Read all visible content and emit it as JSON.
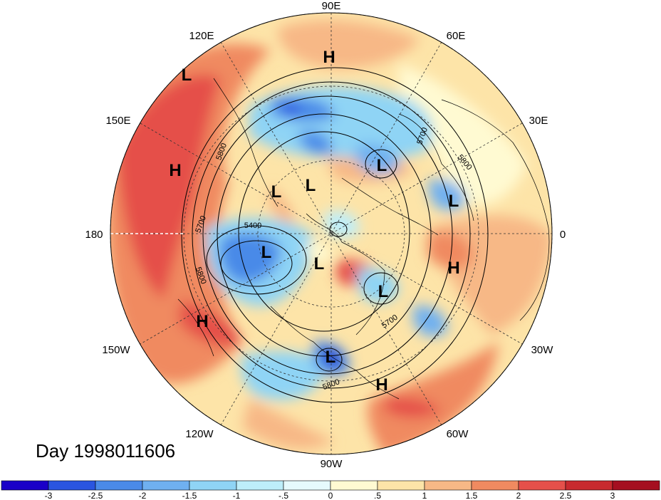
{
  "date_label": "Day 1998011606",
  "longitude_labels": {
    "lon_90e": "90E",
    "lon_120e": "120E",
    "lon_60e": "60E",
    "lon_150e": "150E",
    "lon_30e": "30E",
    "lon_180": "180",
    "lon_0": "0",
    "lon_150w": "150W",
    "lon_30w": "30W",
    "lon_120w": "120W",
    "lon_60w": "60W",
    "lon_90w": "90W"
  },
  "pressure_centers": [
    {
      "type": "L",
      "name": "low-west-pacific"
    },
    {
      "type": "H",
      "name": "high-siberia"
    },
    {
      "type": "H",
      "name": "high-north-pacific"
    },
    {
      "type": "L",
      "name": "low-okhotsk"
    },
    {
      "type": "L",
      "name": "low-east-siberia"
    },
    {
      "type": "L",
      "name": "low-ural"
    },
    {
      "type": "L",
      "name": "low-mediterranean"
    },
    {
      "type": "L",
      "name": "low-alaska"
    },
    {
      "type": "L",
      "name": "low-arctic"
    },
    {
      "type": "H",
      "name": "high-africa"
    },
    {
      "type": "L",
      "name": "low-north-atlantic"
    },
    {
      "type": "H",
      "name": "high-south-pacific"
    },
    {
      "type": "L",
      "name": "low-gulf-mexico"
    },
    {
      "type": "H",
      "name": "high-caribbean"
    }
  ],
  "contour_labels": [
    "5800",
    "5700",
    "5800",
    "5400",
    "5700",
    "5800",
    "5700",
    "5800"
  ],
  "colorbar": {
    "ticks": [
      "-3",
      "-2.5",
      "-2",
      "-1.5",
      "-1",
      "-.5",
      "0",
      ".5",
      "1",
      "1.5",
      "2",
      "2.5",
      "3"
    ],
    "colors": [
      "#1a00c8",
      "#2a55e0",
      "#4a8ae8",
      "#6fb0f0",
      "#8fd4f5",
      "#bdeefa",
      "#e6fafd",
      "#fffad2",
      "#fde4a8",
      "#f7b886",
      "#f08a60",
      "#e5504a",
      "#c82a2e",
      "#a50f20"
    ]
  }
}
